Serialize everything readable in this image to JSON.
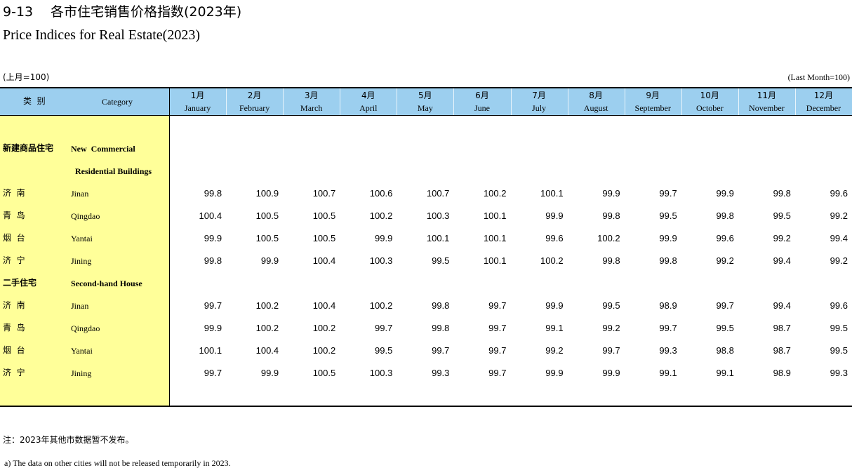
{
  "title": {
    "code": "9-13",
    "cn": "各市住宅销售价格指数(2023年)",
    "en": "Price Indices for Real Estate(2023)"
  },
  "unit": {
    "cn": "(上月=100)",
    "en": "(Last Month=100)"
  },
  "table": {
    "header": {
      "category_cn": "类  别",
      "category_en": "Category",
      "months": [
        {
          "cn": "1月",
          "en": "January"
        },
        {
          "cn": "2月",
          "en": "February"
        },
        {
          "cn": "3月",
          "en": "March"
        },
        {
          "cn": "4月",
          "en": "April"
        },
        {
          "cn": "5月",
          "en": "May"
        },
        {
          "cn": "6月",
          "en": "June"
        },
        {
          "cn": "7月",
          "en": "July"
        },
        {
          "cn": "8月",
          "en": "August"
        },
        {
          "cn": "9月",
          "en": "September"
        },
        {
          "cn": "10月",
          "en": "October"
        },
        {
          "cn": "11月",
          "en": "November"
        },
        {
          "cn": "12月",
          "en": "December"
        }
      ]
    },
    "sections": [
      {
        "cn": "新建商品住宅",
        "en": [
          "New  Commercial",
          "Residential Buildings"
        ],
        "rows": [
          {
            "cn": "济  南",
            "en": "Jinan",
            "values": [
              "99.8",
              "100.9",
              "100.7",
              "100.6",
              "100.7",
              "100.2",
              "100.1",
              "99.9",
              "99.7",
              "99.9",
              "99.8",
              "99.6"
            ]
          },
          {
            "cn": "青  岛",
            "en": "Qingdao",
            "values": [
              "100.4",
              "100.5",
              "100.5",
              "100.2",
              "100.3",
              "100.1",
              "99.9",
              "99.8",
              "99.5",
              "99.8",
              "99.5",
              "99.2"
            ]
          },
          {
            "cn": "烟  台",
            "en": "Yantai",
            "values": [
              "99.9",
              "100.5",
              "100.5",
              "99.9",
              "100.1",
              "100.1",
              "99.6",
              "100.2",
              "99.9",
              "99.6",
              "99.2",
              "99.4"
            ]
          },
          {
            "cn": "济  宁",
            "en": "Jining",
            "values": [
              "99.8",
              "99.9",
              "100.4",
              "100.3",
              "99.5",
              "100.1",
              "100.2",
              "99.8",
              "99.8",
              "99.2",
              "99.4",
              "99.2"
            ]
          }
        ]
      },
      {
        "cn": "二手住宅",
        "en": [
          "Second-hand House"
        ],
        "rows": [
          {
            "cn": "济  南",
            "en": "Jinan",
            "values": [
              "99.7",
              "100.2",
              "100.4",
              "100.2",
              "99.8",
              "99.7",
              "99.9",
              "99.5",
              "98.9",
              "99.7",
              "99.4",
              "99.6"
            ]
          },
          {
            "cn": "青  岛",
            "en": "Qingdao",
            "values": [
              "99.9",
              "100.2",
              "100.2",
              "99.7",
              "99.8",
              "99.7",
              "99.1",
              "99.2",
              "99.7",
              "99.5",
              "98.7",
              "99.5"
            ]
          },
          {
            "cn": "烟  台",
            "en": "Yantai",
            "values": [
              "100.1",
              "100.4",
              "100.2",
              "99.5",
              "99.7",
              "99.7",
              "99.2",
              "99.7",
              "99.3",
              "98.8",
              "98.7",
              "99.5"
            ]
          },
          {
            "cn": "济  宁",
            "en": "Jining",
            "values": [
              "99.7",
              "99.9",
              "100.5",
              "100.3",
              "99.3",
              "99.7",
              "99.9",
              "99.9",
              "99.1",
              "99.1",
              "98.9",
              "99.3"
            ]
          }
        ]
      }
    ]
  },
  "notes": [
    "注：2023年其他市数据暂不发布。",
    "a) The data on other cities will not be released temporarily in 2023."
  ]
}
